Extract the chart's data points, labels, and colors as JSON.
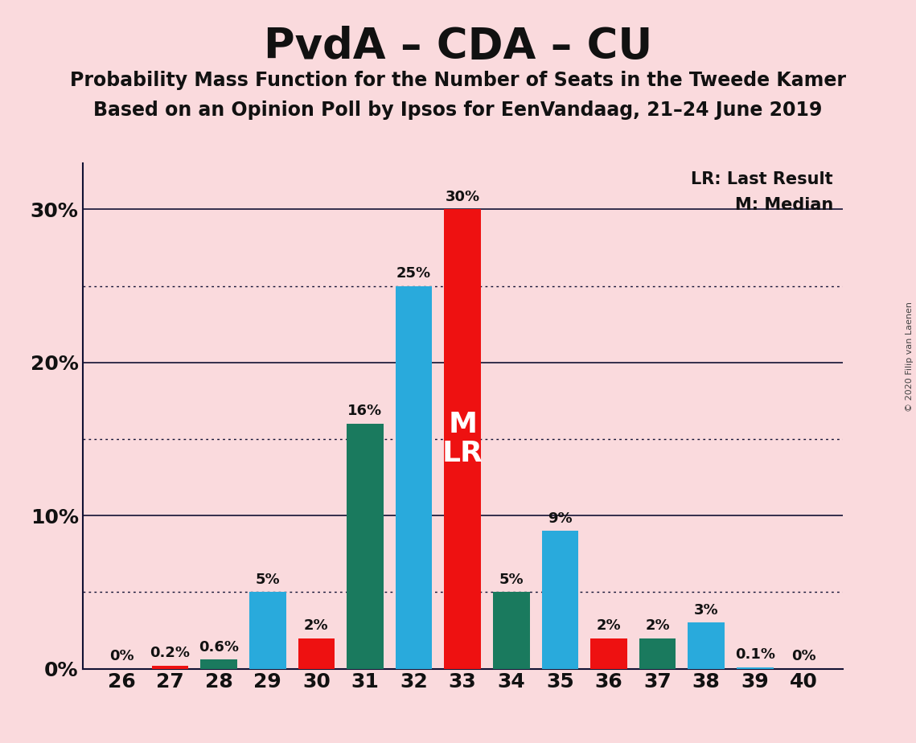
{
  "title": "PvdA – CDA – CU",
  "subtitle1": "Probability Mass Function for the Number of Seats in the Tweede Kamer",
  "subtitle2": "Based on an Opinion Poll by Ipsos for EenVandaag, 21–24 June 2019",
  "copyright": "© 2020 Filip van Laenen",
  "legend_lr": "LR: Last Result",
  "legend_m": "M: Median",
  "seats": [
    26,
    27,
    28,
    29,
    30,
    31,
    32,
    33,
    34,
    35,
    36,
    37,
    38,
    39,
    40
  ],
  "colors": {
    "red": "#EE1111",
    "teal": "#1A7A5E",
    "blue": "#29AADC"
  },
  "bar_data": {
    "26": {
      "color": "red",
      "val": 0.0
    },
    "27": {
      "color": "red",
      "val": 0.2
    },
    "28": {
      "color": "teal",
      "val": 0.6
    },
    "29": {
      "color": "blue",
      "val": 5.0
    },
    "30": {
      "color": "red",
      "val": 2.0
    },
    "31": {
      "color": "teal",
      "val": 16.0
    },
    "32": {
      "color": "blue",
      "val": 25.0
    },
    "33": {
      "color": "red",
      "val": 30.0
    },
    "34": {
      "color": "teal",
      "val": 5.0
    },
    "35": {
      "color": "blue",
      "val": 9.0
    },
    "36": {
      "color": "red",
      "val": 2.0
    },
    "37": {
      "color": "teal",
      "val": 2.0
    },
    "38": {
      "color": "blue",
      "val": 3.0
    },
    "39": {
      "color": "blue",
      "val": 0.1
    },
    "40": {
      "color": "red",
      "val": 0.0
    }
  },
  "bar_labels": {
    "26": "0%",
    "27": "0.2%",
    "28": "0.6%",
    "29": "5%",
    "30": "2%",
    "31": "16%",
    "32": "25%",
    "33": "30%",
    "34": "5%",
    "35": "9%",
    "36": "2%",
    "37": "2%",
    "38": "3%",
    "39": "0.1%",
    "40": "0%"
  },
  "median_seat": 33,
  "last_result_seat": 33,
  "background_color": "#FADADD",
  "ylim_max": 33,
  "solid_lines": [
    10,
    20,
    30
  ],
  "dotted_lines": [
    5,
    15,
    25
  ],
  "ytick_vals": [
    0,
    10,
    20,
    30
  ],
  "ytick_labels": [
    "0%",
    "10%",
    "20%",
    "30%"
  ],
  "bar_width": 0.75,
  "label_fontsize": 13,
  "tick_fontsize": 18,
  "title_fontsize": 38,
  "subtitle_fontsize": 17
}
